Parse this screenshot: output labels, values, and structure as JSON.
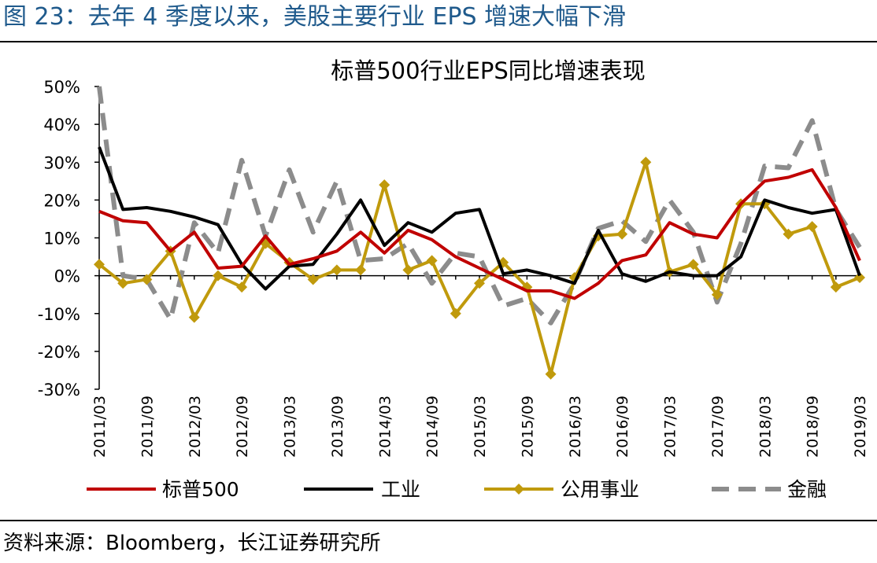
{
  "figure_title": "图 23：去年 4 季度以来，美股主要行业 EPS 增速大幅下滑",
  "source_note": "资料来源：Bloomberg，长江证券研究所",
  "chart_data": {
    "type": "line",
    "title": "标普500行业EPS同比增速表现",
    "xlabel": "",
    "ylabel": "",
    "ylim": [
      -30,
      50
    ],
    "yticks": [
      -30,
      -20,
      -10,
      0,
      10,
      20,
      30,
      40,
      50
    ],
    "ytick_labels": [
      "-30%",
      "-20%",
      "-10%",
      "0%",
      "10%",
      "20%",
      "30%",
      "40%",
      "50%"
    ],
    "categories": [
      "2011/03",
      "2011/06",
      "2011/09",
      "2011/12",
      "2012/03",
      "2012/06",
      "2012/09",
      "2012/12",
      "2013/03",
      "2013/06",
      "2013/09",
      "2013/12",
      "2014/03",
      "2014/06",
      "2014/09",
      "2014/12",
      "2015/03",
      "2015/06",
      "2015/09",
      "2015/12",
      "2016/03",
      "2016/06",
      "2016/09",
      "2016/12",
      "2017/03",
      "2017/06",
      "2017/09",
      "2017/12",
      "2018/03",
      "2018/06",
      "2018/09",
      "2018/12",
      "2019/03"
    ],
    "xtick_labels": [
      "2011/03",
      "",
      "2011/09",
      "",
      "2012/03",
      "",
      "2012/09",
      "",
      "2013/03",
      "",
      "2013/09",
      "",
      "2014/03",
      "",
      "2014/09",
      "",
      "2015/03",
      "",
      "2015/09",
      "",
      "2016/03",
      "",
      "2016/09",
      "",
      "2017/03",
      "",
      "2017/09",
      "",
      "2018/03",
      "",
      "2018/09",
      "",
      "2019/03"
    ],
    "legend_position": "bottom",
    "series": [
      {
        "name": "标普500",
        "style": "solid",
        "marker": "none",
        "color": "#c00000",
        "values": [
          17,
          14.5,
          14,
          6.5,
          11.5,
          2,
          2.5,
          10.5,
          3,
          4.5,
          6.5,
          11.5,
          6,
          12,
          9.5,
          5,
          2,
          -1,
          -4,
          -4,
          -6,
          -2,
          4,
          5.5,
          14,
          11,
          10,
          19,
          25,
          26,
          28,
          18,
          4
        ]
      },
      {
        "name": "工业",
        "style": "solid",
        "marker": "none",
        "color": "#000000",
        "values": [
          34,
          17.5,
          18,
          17,
          15.5,
          13.5,
          3,
          -3.5,
          2.5,
          3,
          11,
          20,
          8,
          14,
          11.5,
          16.5,
          17.5,
          0.5,
          1.5,
          0,
          -2,
          12,
          0.5,
          -1.5,
          1,
          0,
          0,
          5,
          20,
          18,
          16.5,
          17.5,
          0
        ]
      },
      {
        "name": "公用事业",
        "style": "solid",
        "marker": "diamond",
        "color": "#c09a0c",
        "values": [
          3,
          -2,
          -1,
          6.5,
          -11,
          0,
          -3,
          8.5,
          3.5,
          -1,
          1.5,
          1.5,
          24,
          1.5,
          4,
          -10,
          -2,
          3.5,
          -3,
          -26,
          -0.5,
          10.5,
          11,
          30,
          1,
          3,
          -5,
          19,
          19,
          11,
          13,
          -3,
          -0.5
        ]
      },
      {
        "name": "金融",
        "style": "dashed",
        "marker": "none",
        "color": "#8c8c8c",
        "values": [
          50,
          0,
          -1,
          -11.5,
          14,
          6,
          30.5,
          10.5,
          28,
          11.5,
          25,
          4,
          4.5,
          8.5,
          -2,
          6,
          5,
          -8,
          -6,
          -12.5,
          -2,
          12.5,
          14.5,
          9,
          20,
          11.5,
          -7,
          8.5,
          29,
          28.5,
          41,
          17.5,
          7.5
        ]
      }
    ]
  }
}
